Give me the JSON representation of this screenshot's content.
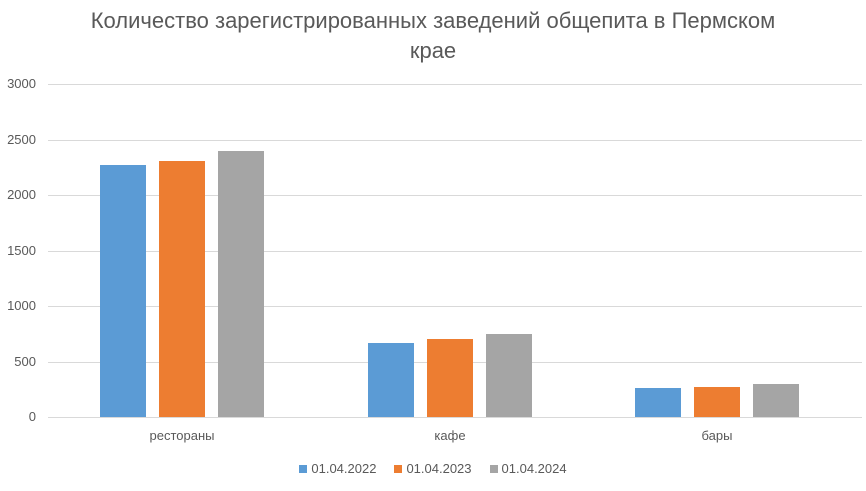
{
  "chart_data": {
    "type": "bar",
    "title": "Количество зарегистрированных заведений общепита в Пермском крае",
    "title_lines": [
      "Количество зарегистрированных заведений общепита в Пермском",
      "крае"
    ],
    "categories": [
      "рестораны",
      "кафе",
      "бары"
    ],
    "series": [
      {
        "name": "01.04.2022",
        "color": "#5B9BD5",
        "values": [
          2270,
          667,
          261
        ]
      },
      {
        "name": "01.04.2023",
        "color": "#ED7D31",
        "values": [
          2306,
          703,
          273
        ]
      },
      {
        "name": "01.04.2024",
        "color": "#A5A5A5",
        "values": [
          2396,
          750,
          297
        ]
      }
    ],
    "xlabel": "",
    "ylabel": "",
    "ylim": [
      0,
      3000
    ],
    "yticks": [
      "0",
      "500",
      "1000",
      "1500",
      "2000",
      "2500",
      "3000"
    ],
    "grid": true,
    "legend_position": "bottom"
  }
}
